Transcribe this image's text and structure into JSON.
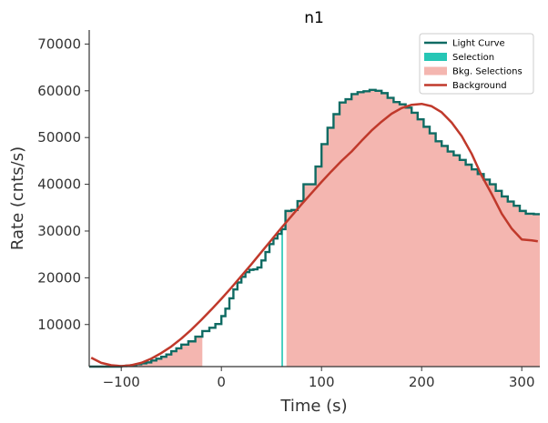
{
  "chart_data": {
    "type": "line",
    "title": "n1",
    "xlabel": "Time (s)",
    "ylabel": "Rate (cnts/s)",
    "xlim": [
      -132,
      318
    ],
    "ylim": [
      1000,
      73000
    ],
    "x_ticks": [
      -100,
      0,
      100,
      200,
      300
    ],
    "x_tick_labels": [
      "−100",
      "0",
      "100",
      "200",
      "300"
    ],
    "y_ticks": [
      10000,
      20000,
      30000,
      40000,
      50000,
      60000,
      70000
    ],
    "y_tick_labels": [
      "10000",
      "20000",
      "30000",
      "40000",
      "50000",
      "60000",
      "70000"
    ],
    "grid": false,
    "legend_position": "top-right",
    "legend": [
      {
        "label": "Light Curve",
        "kind": "line",
        "color": "#0f6b63"
      },
      {
        "label": "Selection",
        "kind": "patch",
        "color": "#26c6b5"
      },
      {
        "label": "Bkg. Selections",
        "kind": "patch",
        "color": "#f4b6b0"
      },
      {
        "label": "Background",
        "kind": "line",
        "color": "#c0392b"
      }
    ],
    "light_curve": {
      "name": "Light Curve",
      "color": "#0f6b63",
      "points": [
        [
          -132,
          900
        ],
        [
          -120,
          900
        ],
        [
          -110,
          900
        ],
        [
          -100,
          1100
        ],
        [
          -95,
          1200
        ],
        [
          -90,
          1300
        ],
        [
          -85,
          1500
        ],
        [
          -80,
          1700
        ],
        [
          -75,
          1900
        ],
        [
          -70,
          2300
        ],
        [
          -65,
          2700
        ],
        [
          -60,
          3100
        ],
        [
          -55,
          3600
        ],
        [
          -50,
          4300
        ],
        [
          -45,
          4900
        ],
        [
          -40,
          5700
        ],
        [
          -33,
          6400
        ],
        [
          -26,
          7400
        ],
        [
          -19,
          8600
        ],
        [
          -12,
          9300
        ],
        [
          -6,
          10100
        ],
        [
          0,
          11800
        ],
        [
          4,
          13400
        ],
        [
          8,
          15600
        ],
        [
          12,
          17500
        ],
        [
          16,
          19000
        ],
        [
          20,
          20200
        ],
        [
          24,
          21200
        ],
        [
          28,
          21700
        ],
        [
          32,
          21800
        ],
        [
          36,
          22200
        ],
        [
          40,
          23700
        ],
        [
          44,
          25500
        ],
        [
          48,
          27200
        ],
        [
          52,
          28400
        ],
        [
          56,
          29400
        ],
        [
          60,
          30400
        ],
        [
          64,
          34300
        ],
        [
          70,
          34500
        ],
        [
          76,
          36400
        ],
        [
          82,
          40000
        ],
        [
          88,
          40000
        ],
        [
          94,
          43800
        ],
        [
          100,
          48600
        ],
        [
          106,
          52100
        ],
        [
          112,
          55000
        ],
        [
          118,
          57500
        ],
        [
          124,
          58200
        ],
        [
          130,
          59300
        ],
        [
          136,
          59700
        ],
        [
          142,
          59900
        ],
        [
          148,
          60200
        ],
        [
          154,
          60000
        ],
        [
          160,
          59500
        ],
        [
          166,
          58500
        ],
        [
          172,
          57600
        ],
        [
          178,
          57100
        ],
        [
          184,
          56400
        ],
        [
          190,
          55300
        ],
        [
          196,
          53900
        ],
        [
          202,
          52300
        ],
        [
          208,
          50900
        ],
        [
          214,
          49200
        ],
        [
          220,
          48200
        ],
        [
          226,
          47000
        ],
        [
          232,
          46200
        ],
        [
          238,
          45200
        ],
        [
          244,
          44200
        ],
        [
          250,
          43200
        ],
        [
          256,
          42200
        ],
        [
          262,
          41000
        ],
        [
          268,
          40000
        ],
        [
          274,
          38600
        ],
        [
          280,
          37400
        ],
        [
          286,
          36300
        ],
        [
          292,
          35400
        ],
        [
          298,
          34300
        ],
        [
          304,
          33700
        ],
        [
          312,
          33600
        ],
        [
          318,
          33600
        ]
      ]
    },
    "background_model": {
      "name": "Background",
      "color": "#c0392b",
      "x": [
        -130,
        -120,
        -110,
        -100,
        -90,
        -80,
        -70,
        -60,
        -50,
        -40,
        -30,
        -20,
        -10,
        0,
        10,
        20,
        30,
        40,
        50,
        60,
        70,
        80,
        90,
        100,
        110,
        120,
        130,
        140,
        150,
        160,
        170,
        180,
        190,
        200,
        210,
        220,
        230,
        240,
        250,
        260,
        270,
        280,
        290,
        300,
        310,
        316
      ],
      "y": [
        2900,
        1800,
        1300,
        1100,
        1300,
        1800,
        2700,
        3900,
        5300,
        7000,
        8900,
        11000,
        13200,
        15500,
        17900,
        20400,
        22900,
        25500,
        28100,
        30700,
        33200,
        35700,
        38100,
        40500,
        42800,
        45000,
        47000,
        49300,
        51500,
        53400,
        55100,
        56300,
        57000,
        57200,
        56700,
        55400,
        53200,
        50300,
        46500,
        41800,
        37900,
        33700,
        30500,
        28200,
        28000,
        27800
      ]
    },
    "selection": {
      "name": "Selection",
      "color": "#26c6b5",
      "from": 60,
      "to": 61.5
    },
    "bkg_selections": {
      "name": "Bkg. Selections",
      "color": "#f4b6b0",
      "intervals": [
        [
          -132,
          -19
        ],
        [
          65,
          318
        ]
      ]
    }
  }
}
